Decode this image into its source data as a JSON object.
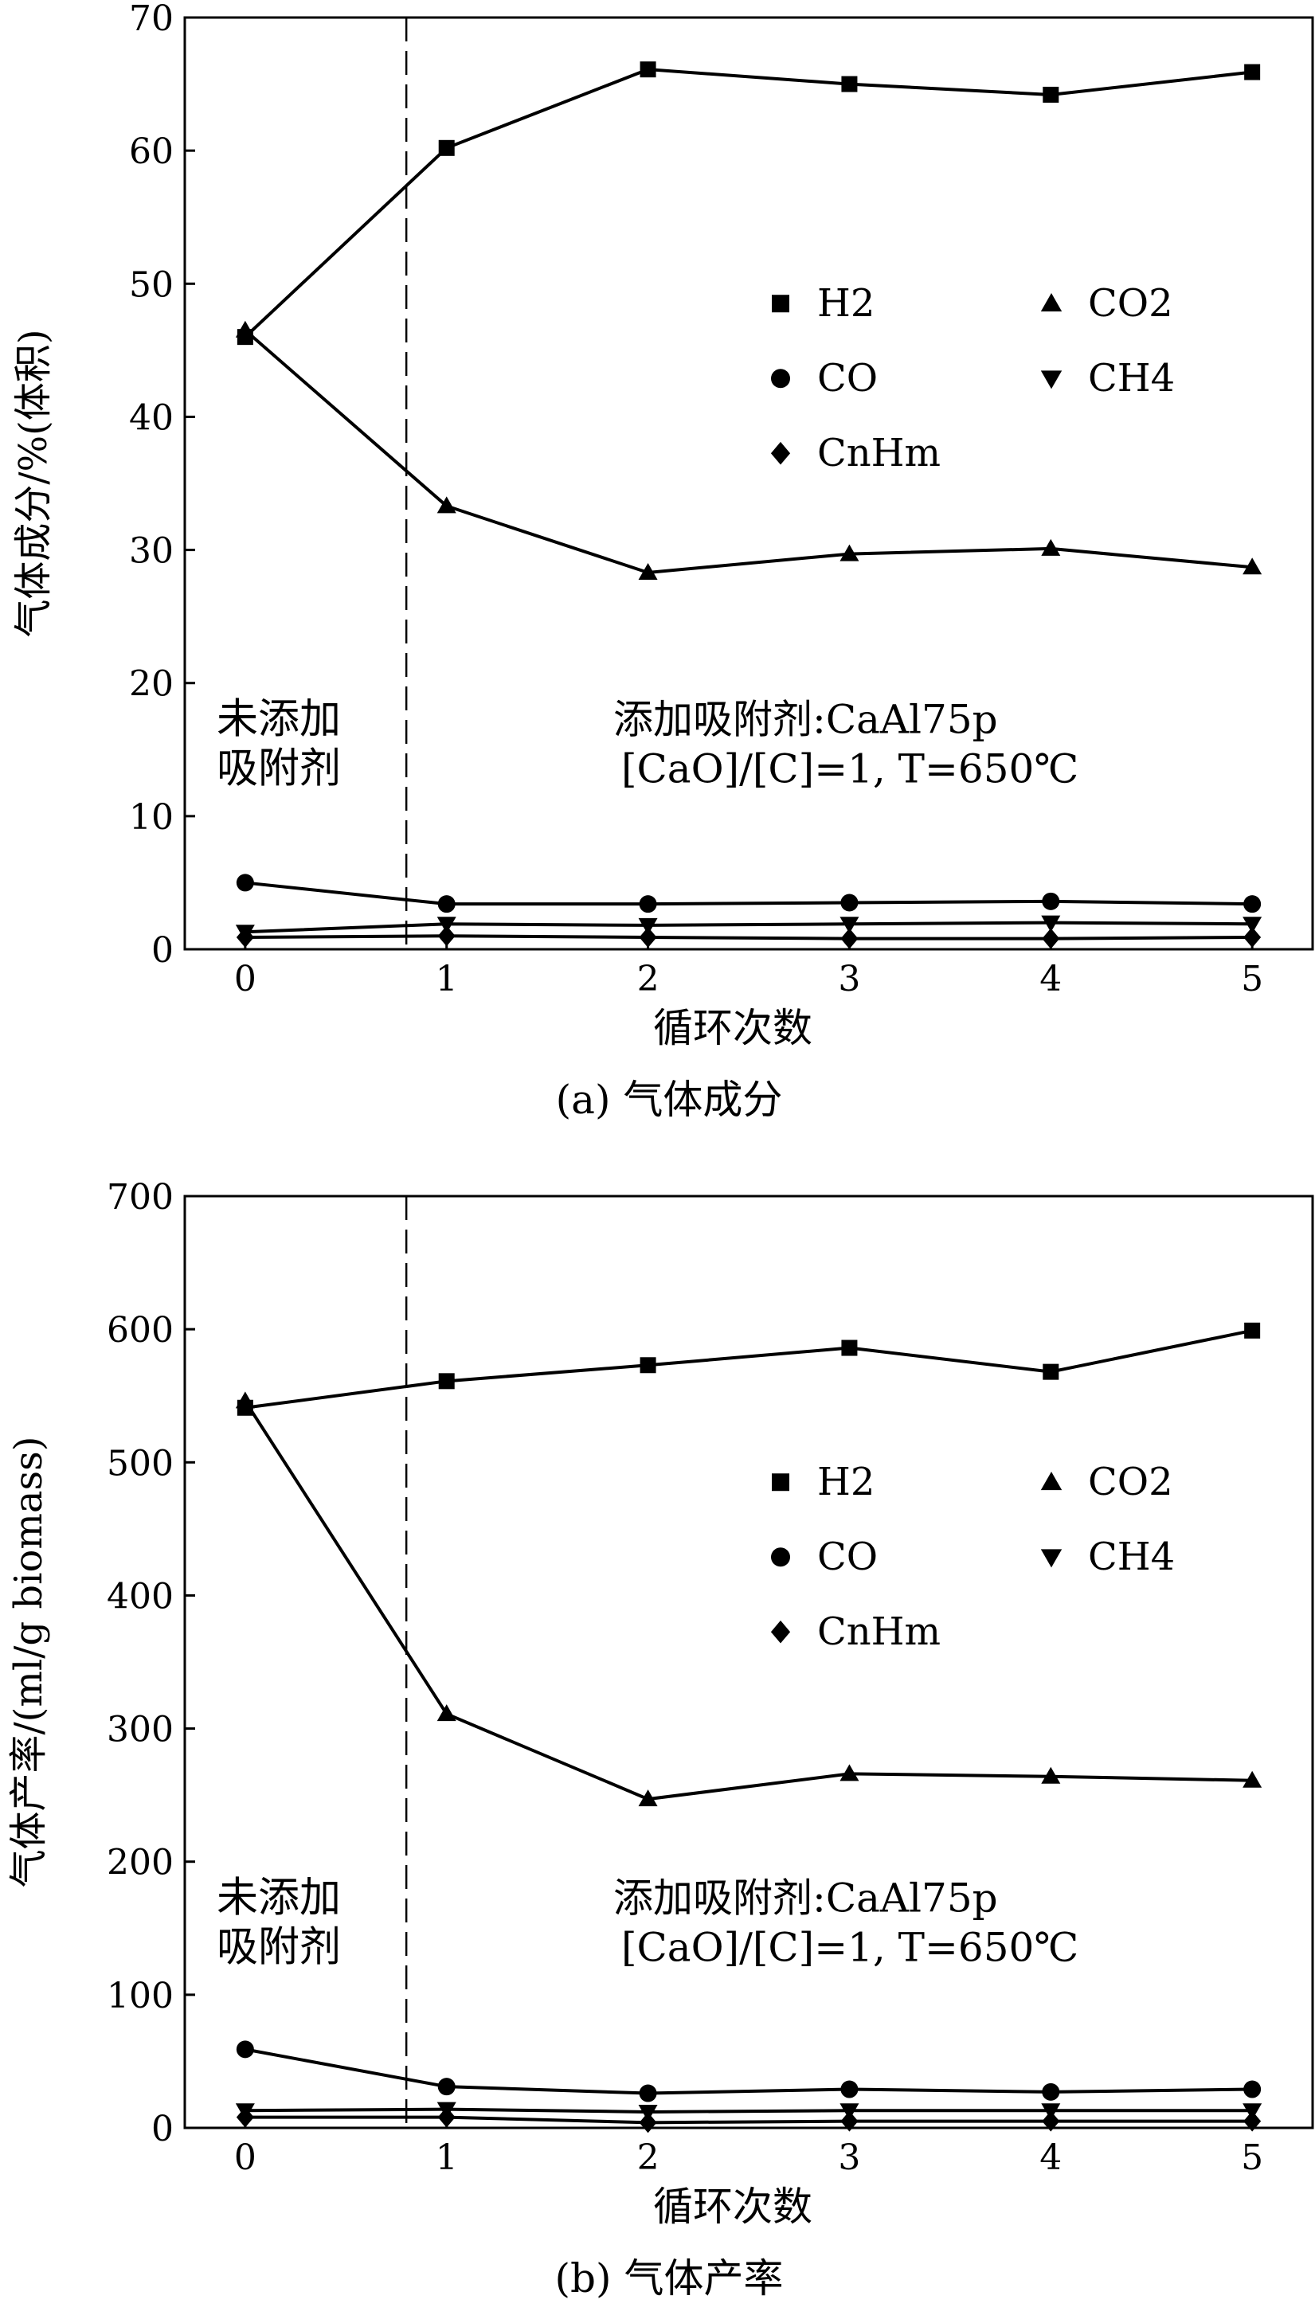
{
  "chart_data": [
    {
      "type": "line",
      "caption": "(a) 气体成分",
      "xlabel": "循环次数",
      "ylabel": "气体成分/%(体积)",
      "x": [
        0,
        1,
        2,
        3,
        4,
        5
      ],
      "xlim": [
        -0.3,
        5.3
      ],
      "ylim": [
        0,
        70
      ],
      "yticks": [
        0,
        10,
        20,
        30,
        40,
        50,
        60,
        70
      ],
      "divider_x": 0.8,
      "annotation_left": [
        "未添加",
        "吸附剂"
      ],
      "annotation_right": [
        "添加吸附剂:CaAl75p",
        "[CaO]/[C]=1, T=650℃"
      ],
      "grid": false,
      "legend_position": "upper-right",
      "series": [
        {
          "name": "H2",
          "marker": "square",
          "values": [
            46,
            60.2,
            66.1,
            65,
            64.2,
            65.9
          ]
        },
        {
          "name": "CO2",
          "marker": "triangle-up",
          "values": [
            46.5,
            33.3,
            28.3,
            29.7,
            30.1,
            28.7
          ]
        },
        {
          "name": "CO",
          "marker": "circle",
          "values": [
            5.0,
            3.4,
            3.4,
            3.5,
            3.6,
            3.4
          ]
        },
        {
          "name": "CH4",
          "marker": "triangle-down",
          "values": [
            1.3,
            1.9,
            1.8,
            1.9,
            2.0,
            1.9
          ]
        },
        {
          "name": "CnHm",
          "marker": "diamond",
          "values": [
            0.9,
            1.0,
            0.9,
            0.8,
            0.8,
            0.9
          ]
        }
      ]
    },
    {
      "type": "line",
      "caption": "(b) 气体产率",
      "xlabel": "循环次数",
      "ylabel": "气体产率/(ml/g  biomass)",
      "x": [
        0,
        1,
        2,
        3,
        4,
        5
      ],
      "xlim": [
        -0.3,
        5.3
      ],
      "ylim": [
        0,
        700
      ],
      "yticks": [
        0,
        100,
        200,
        300,
        400,
        500,
        600,
        700
      ],
      "divider_x": 0.8,
      "annotation_left": [
        "未添加",
        "吸附剂"
      ],
      "annotation_right": [
        "添加吸附剂:CaAl75p",
        "[CaO]/[C]=1, T=650℃"
      ],
      "grid": false,
      "legend_position": "upper-right",
      "series": [
        {
          "name": "H2",
          "marker": "square",
          "values": [
            541,
            561,
            573,
            586,
            568,
            599
          ]
        },
        {
          "name": "CO2",
          "marker": "triangle-up",
          "values": [
            546,
            311,
            247,
            266,
            264,
            261
          ]
        },
        {
          "name": "CO",
          "marker": "circle",
          "values": [
            59,
            31,
            26,
            29,
            27,
            29
          ]
        },
        {
          "name": "CH4",
          "marker": "triangle-down",
          "values": [
            13,
            14,
            12,
            13,
            13,
            13
          ]
        },
        {
          "name": "CnHm",
          "marker": "diamond",
          "values": [
            8,
            8,
            4,
            5,
            5,
            5
          ]
        }
      ]
    }
  ]
}
